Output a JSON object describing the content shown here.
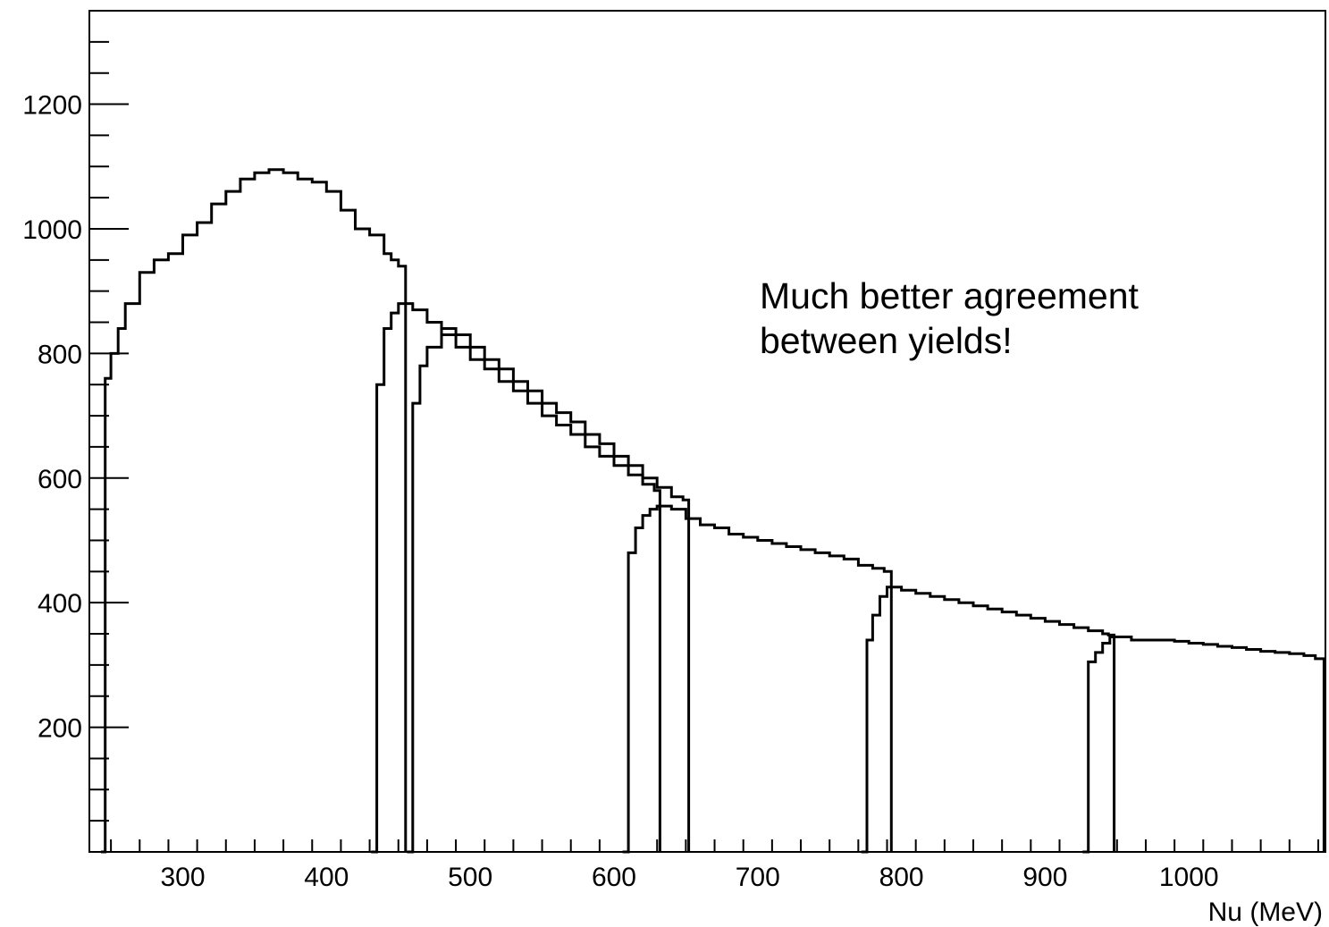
{
  "chart_data": {
    "type": "line",
    "title": "",
    "xlabel": "Nu (MeV)",
    "ylabel": "",
    "xlim": [
      235,
      1095
    ],
    "ylim": [
      0,
      1350
    ],
    "x_ticks": [
      300,
      400,
      500,
      600,
      700,
      800,
      900,
      1000
    ],
    "y_ticks": [
      200,
      400,
      600,
      800,
      1000,
      1200
    ],
    "x_tick_labels": [
      "300",
      "400",
      "500",
      "600",
      "700",
      "800",
      "900",
      "1000"
    ],
    "y_tick_labels": [
      "200",
      "400",
      "600",
      "800",
      "1000",
      "1200"
    ],
    "grid": false,
    "annotation_lines": [
      "Much better agreement",
      "between yields!"
    ],
    "series": [
      {
        "x": [
          243,
          246,
          250,
          255,
          260,
          270,
          280,
          290,
          300,
          310,
          320,
          330,
          340,
          350,
          360,
          370,
          380,
          390,
          400,
          410,
          420,
          430,
          440,
          445,
          450,
          452,
          455
        ],
        "y": [
          0,
          760,
          800,
          840,
          880,
          930,
          950,
          960,
          990,
          1010,
          1040,
          1060,
          1080,
          1090,
          1095,
          1090,
          1080,
          1075,
          1060,
          1030,
          1000,
          990,
          960,
          950,
          940,
          940,
          0
        ]
      },
      {
        "x": [
          431,
          435,
          440,
          445,
          450,
          455,
          460,
          470,
          480,
          490,
          500,
          510,
          520,
          530,
          540,
          550,
          560,
          570,
          580,
          590,
          600,
          610,
          620,
          628,
          632
        ],
        "y": [
          0,
          750,
          840,
          865,
          880,
          880,
          870,
          850,
          830,
          810,
          790,
          775,
          755,
          740,
          720,
          700,
          685,
          670,
          650,
          635,
          620,
          605,
          590,
          580,
          0
        ]
      },
      {
        "x": [
          456,
          460,
          465,
          470,
          480,
          490,
          500,
          510,
          520,
          530,
          540,
          550,
          560,
          570,
          580,
          590,
          600,
          610,
          620,
          630,
          640,
          648,
          652
        ],
        "y": [
          0,
          720,
          780,
          810,
          840,
          830,
          810,
          790,
          775,
          755,
          740,
          720,
          705,
          690,
          670,
          655,
          635,
          620,
          600,
          585,
          570,
          565,
          0
        ]
      },
      {
        "x": [
          606,
          610,
          615,
          620,
          625,
          630,
          640,
          650,
          660,
          670,
          680,
          690,
          700,
          710,
          720,
          730,
          740,
          750,
          760,
          770,
          780,
          788,
          793
        ],
        "y": [
          0,
          480,
          520,
          540,
          550,
          555,
          550,
          535,
          525,
          520,
          510,
          505,
          500,
          495,
          490,
          485,
          480,
          475,
          470,
          460,
          455,
          450,
          0
        ]
      },
      {
        "x": [
          772,
          776,
          780,
          785,
          790,
          800,
          810,
          820,
          830,
          840,
          850,
          860,
          870,
          880,
          890,
          900,
          910,
          920,
          930,
          940,
          944,
          948
        ],
        "y": [
          0,
          340,
          380,
          410,
          425,
          420,
          415,
          410,
          405,
          400,
          395,
          390,
          385,
          380,
          375,
          370,
          365,
          360,
          355,
          350,
          348,
          0
        ]
      },
      {
        "x": [
          926,
          930,
          935,
          940,
          945,
          950,
          960,
          970,
          980,
          990,
          1000,
          1010,
          1020,
          1030,
          1040,
          1050,
          1060,
          1070,
          1080,
          1088,
          1094
        ],
        "y": [
          0,
          305,
          320,
          335,
          345,
          345,
          340,
          340,
          340,
          338,
          335,
          333,
          330,
          328,
          325,
          322,
          320,
          318,
          315,
          310,
          0
        ]
      }
    ]
  }
}
